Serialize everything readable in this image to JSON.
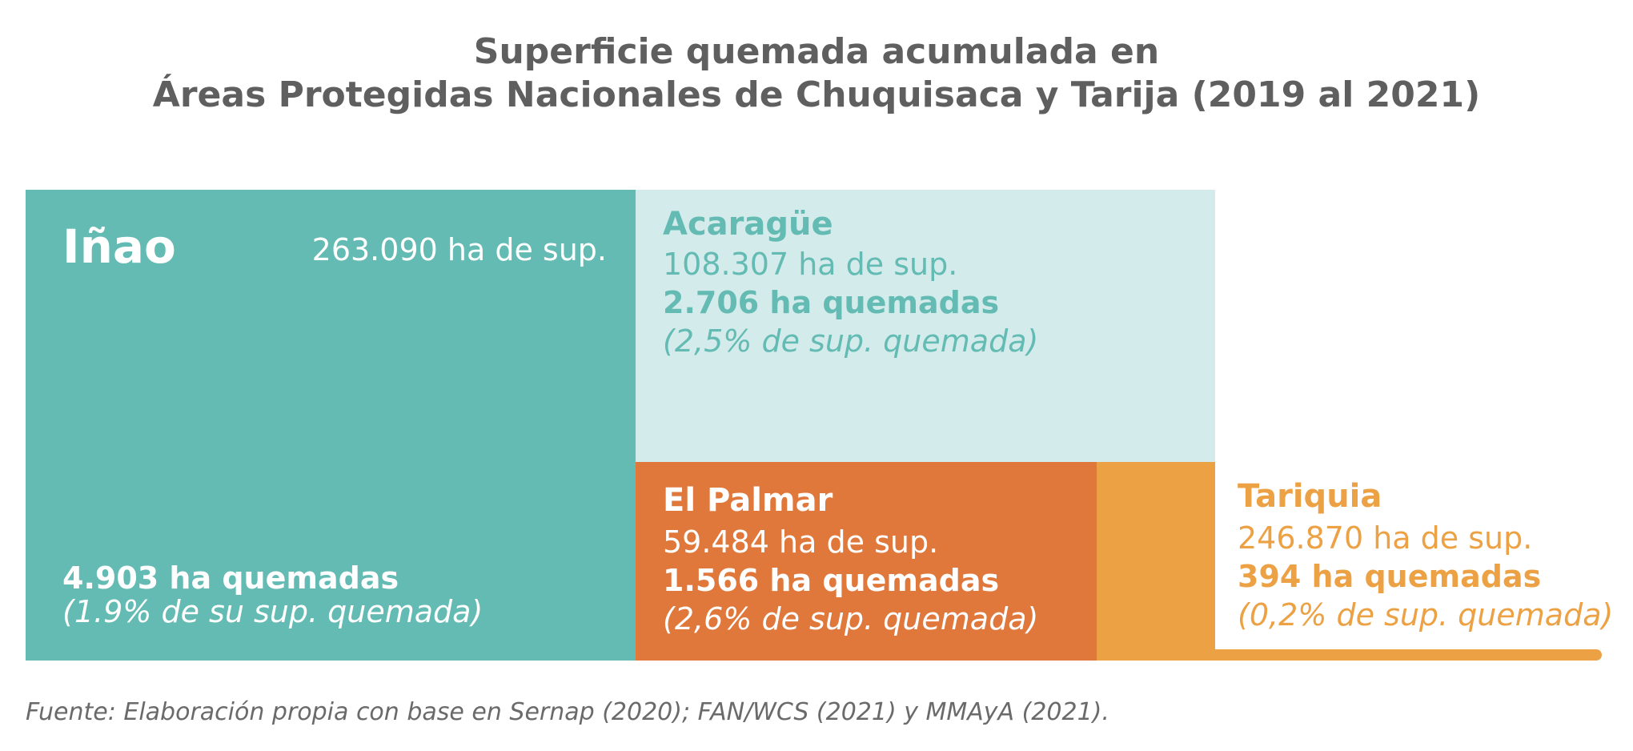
{
  "title_line1": "Superficie quemada acumulada en",
  "title_line2": "Áreas Protegidas Nacionales de Chuquisaca y Tarija (2019 al 2021)",
  "source": "Fuente: Elaboración propia con base en Sernap (2020); FAN/WCS (2021) y MMAyA (2021).",
  "colors": {
    "title": "#5f5f5f",
    "inao_fill": "#63bbb3",
    "acaraguee_fill": "#d3ebea",
    "acaraguee_text": "#63bbb3",
    "palmar_fill": "#e0773b",
    "tariquia_fill": "#eca244",
    "tariquia_text": "#eca244",
    "white": "#ffffff"
  },
  "chart_data": {
    "type": "treemap",
    "title": "Superficie quemada acumulada en Áreas Protegidas Nacionales de Chuquisaca y Tarija (2019 al 2021)",
    "units": "ha",
    "items": [
      {
        "name": "Iñao",
        "area_ha": 263090,
        "burned_ha": 4903,
        "burned_pct": 1.9,
        "area_label": "263.090 ha de sup.",
        "burned_label": "4.903 ha quemadas",
        "pct_label": "(1.9% de su sup. quemada)"
      },
      {
        "name": "Acaragüe",
        "area_ha": 108307,
        "burned_ha": 2706,
        "burned_pct": 2.5,
        "area_label": "108.307 ha de sup.",
        "burned_label": "2.706 ha quemadas",
        "pct_label": "(2,5% de sup. quemada)"
      },
      {
        "name": "El Palmar",
        "area_ha": 59484,
        "burned_ha": 1566,
        "burned_pct": 2.6,
        "area_label": "59.484 ha de sup.",
        "burned_label": "1.566 ha quemadas",
        "pct_label": "(2,6% de sup. quemada)"
      },
      {
        "name": "Tariquia",
        "area_ha": 246870,
        "burned_ha": 394,
        "burned_pct": 0.2,
        "area_label": "246.870 ha de sup.",
        "burned_label": "394 ha quemadas",
        "pct_label": "(0,2% de sup. quemada)"
      }
    ]
  }
}
